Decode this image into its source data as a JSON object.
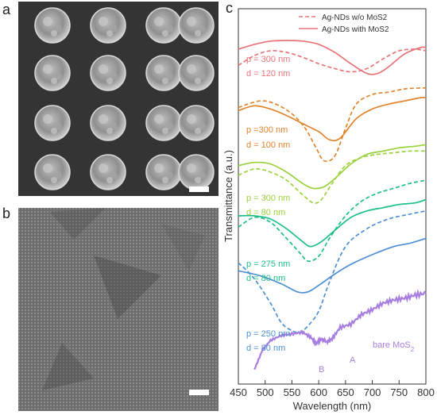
{
  "panels": {
    "a": "a",
    "b": "b",
    "c": "c"
  },
  "chart_data": {
    "type": "line",
    "xlabel": "Wavelength (nm)",
    "ylabel": "Transmittance (a.u.)",
    "xlim": [
      450,
      800
    ],
    "x_ticks": [
      "450",
      "500",
      "550",
      "600",
      "650",
      "700",
      "750",
      "800"
    ],
    "legend": [
      {
        "label": "Ag-NDs w/o MoS2",
        "style": "dashed"
      },
      {
        "label": "Ag-NDs with MoS2",
        "style": "solid"
      }
    ],
    "legend_position": "top-right",
    "annotations": [
      {
        "text": "p = 300 nm",
        "color": "#e8747a"
      },
      {
        "text": "d = 120 nm",
        "color": "#e8747a"
      },
      {
        "text": "p =300 nm",
        "color": "#e0842e"
      },
      {
        "text": "d = 100 nm",
        "color": "#e0842e"
      },
      {
        "text": "p = 300 nm",
        "color": "#9ad13c"
      },
      {
        "text": "d = 80 nm",
        "color": "#9ad13c"
      },
      {
        "text": "p = 275 nm",
        "color": "#1dbf86"
      },
      {
        "text": "d = 80 nm",
        "color": "#1dbf86"
      },
      {
        "text": "p = 250 nm",
        "color": "#4d8fd4"
      },
      {
        "text": "d = 80 nm",
        "color": "#4d8fd4"
      },
      {
        "text": "bare MoS",
        "sub": "2",
        "color": "#a87ee0"
      },
      {
        "text": "B",
        "color": "#a87ee0"
      },
      {
        "text": "A",
        "color": "#a87ee0"
      }
    ],
    "series": [
      {
        "label_ref": "p = 300 nm, d = 120 nm",
        "style": "solid",
        "color": "#e8747a",
        "x": [
          450,
          480,
          510,
          540,
          570,
          600,
          630,
          660,
          690,
          710,
          730,
          760,
          790,
          800
        ],
        "y": [
          9.05,
          9.2,
          9.3,
          9.32,
          9.3,
          9.2,
          8.95,
          8.6,
          8.3,
          8.3,
          8.5,
          8.9,
          9.1,
          9.1
        ]
      },
      {
        "label_ref": "p = 300 nm, d = 120 nm",
        "style": "dashed",
        "color": "#e8747a",
        "x": [
          450,
          480,
          510,
          540,
          570,
          600,
          630,
          660,
          690,
          720,
          750,
          780,
          800
        ],
        "y": [
          8.55,
          8.85,
          9.0,
          8.95,
          8.8,
          8.6,
          8.45,
          8.35,
          8.45,
          8.75,
          9.0,
          9.05,
          9.0
        ]
      },
      {
        "label_ref": "p =300 nm, d = 100 nm",
        "style": "solid",
        "color": "#e0842e",
        "x": [
          450,
          480,
          510,
          540,
          570,
          600,
          620,
          640,
          670,
          700,
          730,
          760,
          790,
          800
        ],
        "y": [
          7.15,
          7.3,
          7.2,
          7.0,
          6.75,
          6.5,
          6.25,
          6.3,
          6.9,
          7.2,
          7.35,
          7.45,
          7.55,
          7.55
        ]
      },
      {
        "label_ref": "p =300 nm, d = 100 nm",
        "style": "dashed",
        "color": "#e0842e",
        "x": [
          450,
          490,
          520,
          550,
          575,
          595,
          610,
          630,
          650,
          670,
          700,
          730,
          760,
          790,
          800
        ],
        "y": [
          7.25,
          7.45,
          7.35,
          7.05,
          6.6,
          6.0,
          5.6,
          5.75,
          6.6,
          7.35,
          7.65,
          7.72,
          7.82,
          7.85,
          7.85
        ]
      },
      {
        "label_ref": "p = 300 nm, d = 80 nm",
        "style": "solid",
        "color": "#9ad13c",
        "x": [
          450,
          480,
          510,
          540,
          570,
          590,
          610,
          630,
          660,
          690,
          720,
          750,
          780,
          800
        ],
        "y": [
          5.45,
          5.55,
          5.5,
          5.25,
          4.9,
          4.75,
          4.8,
          5.05,
          5.5,
          5.8,
          5.9,
          6.0,
          6.05,
          6.1
        ]
      },
      {
        "label_ref": "p = 300 nm, d = 80 nm",
        "style": "dashed",
        "color": "#9ad13c",
        "x": [
          450,
          480,
          510,
          540,
          570,
          590,
          605,
          625,
          650,
          680,
          710,
          740,
          770,
          800
        ],
        "y": [
          5.15,
          5.35,
          5.25,
          5.0,
          4.55,
          4.3,
          4.4,
          4.9,
          5.45,
          5.7,
          5.8,
          5.85,
          5.9,
          5.9
        ]
      },
      {
        "label_ref": "p = 275 nm, d = 80 nm",
        "style": "solid",
        "color": "#1dbf86",
        "x": [
          450,
          480,
          510,
          540,
          570,
          585,
          605,
          630,
          660,
          690,
          720,
          750,
          780,
          800
        ],
        "y": [
          3.9,
          3.9,
          3.8,
          3.5,
          3.1,
          2.95,
          3.1,
          3.45,
          3.85,
          4.05,
          4.15,
          4.25,
          4.3,
          4.4
        ]
      },
      {
        "label_ref": "p = 275 nm, d = 80 nm",
        "style": "dashed",
        "color": "#1dbf86",
        "x": [
          450,
          480,
          510,
          540,
          565,
          580,
          600,
          620,
          650,
          680,
          710,
          740,
          770,
          800
        ],
        "y": [
          3.55,
          3.85,
          3.7,
          3.2,
          2.75,
          2.5,
          2.65,
          3.2,
          3.9,
          4.35,
          4.6,
          4.75,
          4.9,
          5.0
        ]
      },
      {
        "label_ref": "p = 250 nm, d = 80 nm",
        "style": "solid",
        "color": "#4d8fd4",
        "x": [
          450,
          490,
          530,
          560,
          580,
          600,
          630,
          660,
          700,
          740,
          770,
          800
        ],
        "y": [
          2.2,
          2.05,
          1.8,
          1.55,
          1.55,
          1.75,
          2.1,
          2.4,
          2.7,
          2.95,
          3.05,
          3.2
        ]
      },
      {
        "label_ref": "p = 250 nm, d = 80 nm",
        "style": "dashed",
        "color": "#4d8fd4",
        "x": [
          450,
          480,
          510,
          530,
          550,
          565,
          580,
          600,
          620,
          650,
          690,
          730,
          770,
          800
        ],
        "y": [
          2.45,
          1.95,
          1.2,
          0.6,
          0.35,
          0.3,
          0.5,
          0.95,
          1.85,
          2.95,
          3.5,
          3.8,
          3.95,
          4.05
        ]
      },
      {
        "label_ref": "bare MoS2",
        "style": "noisy",
        "color": "#a87ee0",
        "x": [
          480,
          495,
          510,
          530,
          550,
          570,
          585,
          595,
          605,
          615,
          625,
          640,
          660,
          680,
          700,
          720,
          740,
          760,
          780,
          800
        ],
        "y": [
          -0.85,
          -0.25,
          0.05,
          0.2,
          0.25,
          0.3,
          0.15,
          -0.05,
          0.1,
          0.0,
          0.1,
          0.45,
          0.55,
          0.85,
          1.0,
          1.2,
          1.3,
          1.35,
          1.45,
          1.5
        ]
      }
    ]
  }
}
